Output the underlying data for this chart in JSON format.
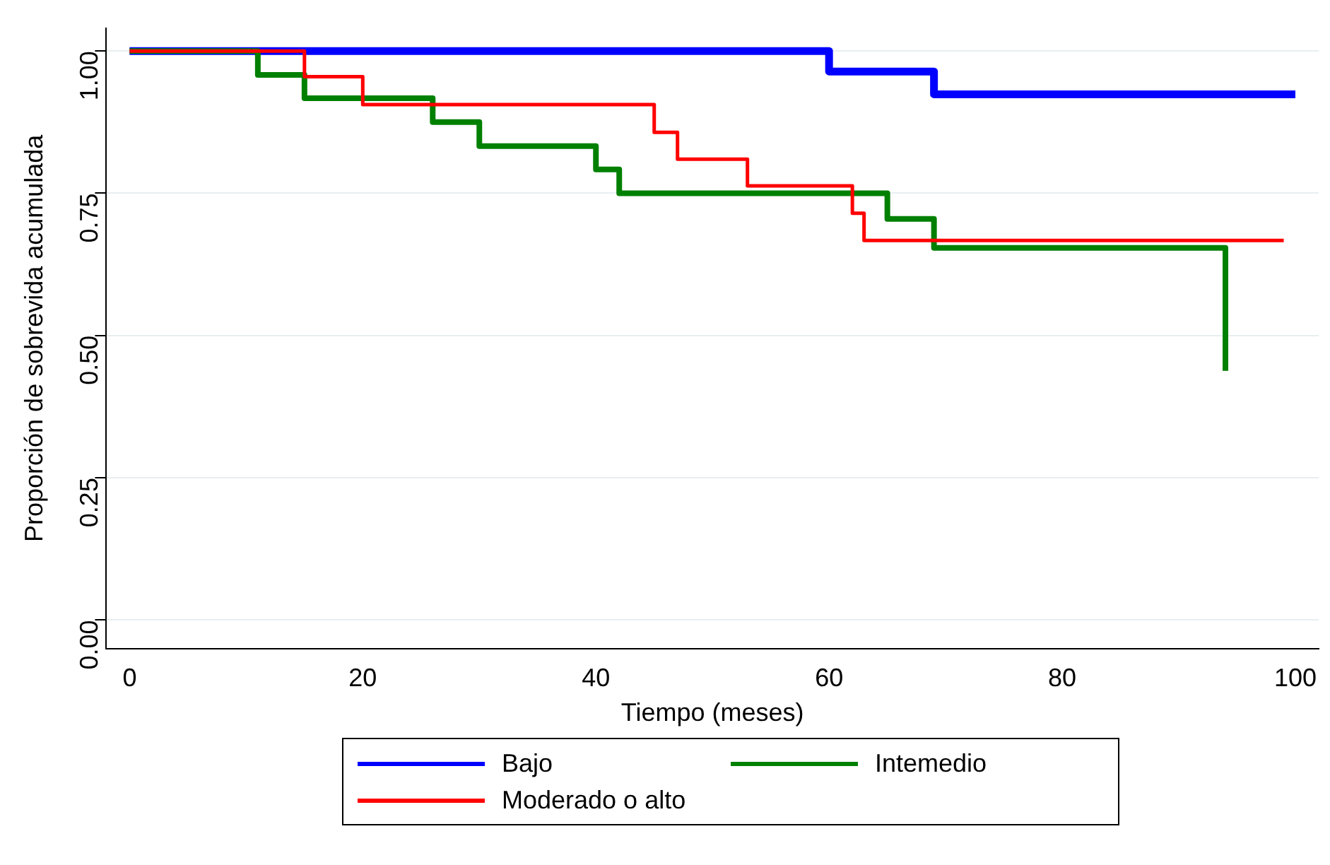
{
  "chart_data": {
    "type": "step",
    "xlabel": "Tiempo (meses)",
    "ylabel": "Proporción de sobrevida acumulada",
    "xlim": [
      -2,
      102
    ],
    "xticks": [
      0,
      20,
      40,
      60,
      80,
      100
    ],
    "ylim": [
      -0.05,
      1.04
    ],
    "yticks": [
      {
        "value": 0,
        "label": "0.00"
      },
      {
        "value": 0.25,
        "label": "0.25"
      },
      {
        "value": 0.5,
        "label": "0.50"
      },
      {
        "value": 0.75,
        "label": "0.75"
      },
      {
        "value": 1,
        "label": "1.00"
      }
    ],
    "grid": "y",
    "legend": "bottom",
    "marker": "none",
    "line_style": "solid",
    "series": [
      {
        "name": "Bajo",
        "color": "#0000ff",
        "x": [
          0,
          60,
          69,
          100
        ],
        "values": [
          1,
          0.964,
          0.924,
          0.924
        ]
      },
      {
        "name": "Intemedio",
        "color": "#008000",
        "x": [
          0,
          11,
          15,
          26,
          30,
          40,
          42,
          65,
          69,
          94,
          94
        ],
        "values": [
          1,
          0.958,
          0.917,
          0.875,
          0.833,
          0.792,
          0.75,
          0.705,
          0.654,
          0.654,
          0.438
        ]
      },
      {
        "name": "Moderado o alto",
        "color": "#ff0000",
        "x": [
          0,
          15,
          20,
          45,
          47,
          53,
          62,
          63,
          99
        ],
        "values": [
          1,
          0.955,
          0.906,
          0.857,
          0.81,
          0.763,
          0.715,
          0.667,
          0.667
        ]
      }
    ]
  }
}
